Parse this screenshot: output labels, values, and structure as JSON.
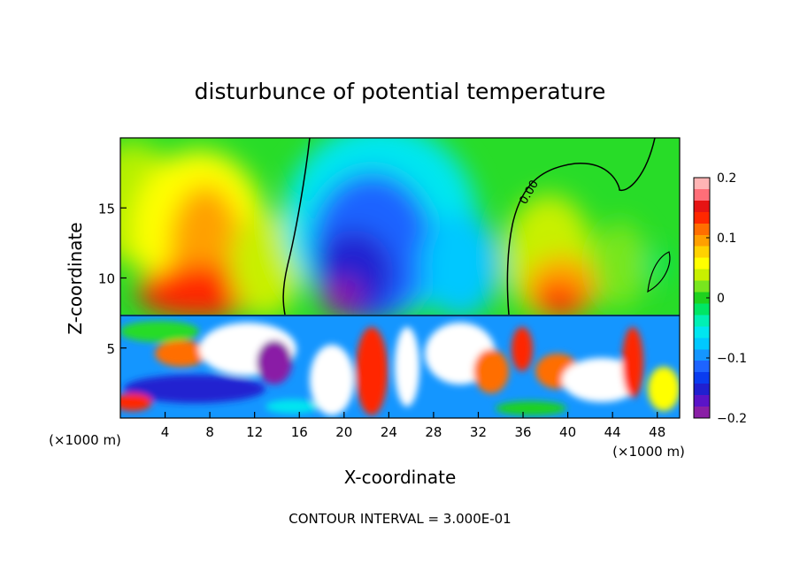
{
  "chart_data": {
    "type": "heatmap",
    "title": "disturbunce of potential temperature",
    "xlabel": "X-coordinate",
    "ylabel": "Z-coordinate",
    "x_unit_left": "(×1000 m)",
    "x_unit_right": "(×1000 m)",
    "xlim": [
      0,
      50
    ],
    "ylim": [
      0,
      20
    ],
    "x_ticks": [
      4,
      8,
      12,
      16,
      20,
      24,
      28,
      32,
      36,
      40,
      44,
      48
    ],
    "y_ticks": [
      5,
      10,
      15
    ],
    "colorbar": {
      "min": -0.2,
      "max": 0.2,
      "tick_values": [
        0.2,
        0.1,
        0,
        -0.1,
        -0.2
      ],
      "tick_labels": [
        "0.2",
        "0.1",
        "0",
        "−0.1",
        "−0.2"
      ],
      "colors": [
        "#8a1fa6",
        "#5a14c8",
        "#2020d0",
        "#0a3cf0",
        "#1e64ff",
        "#1496ff",
        "#00c8ff",
        "#00e6f0",
        "#00f0b4",
        "#00e664",
        "#1ed21e",
        "#78e61e",
        "#c8f000",
        "#ffff00",
        "#ffd200",
        "#ffa000",
        "#ff6e00",
        "#ff2800",
        "#e61414",
        "#ff6e78",
        "#ffb4b4"
      ]
    },
    "contour_label": "0.00",
    "contour_interval_text": "CONTOUR INTERVAL = 3.000E-01",
    "boundary_layer_top_z": 7.2,
    "features": [
      {
        "x": 8,
        "z": 11,
        "value": 0.15
      },
      {
        "x": 22.5,
        "z": 12,
        "value": -0.17
      },
      {
        "x": 40,
        "z": 10.5,
        "value": 0.13
      },
      {
        "x": 47.5,
        "z": 11,
        "value": -0.05
      }
    ]
  }
}
